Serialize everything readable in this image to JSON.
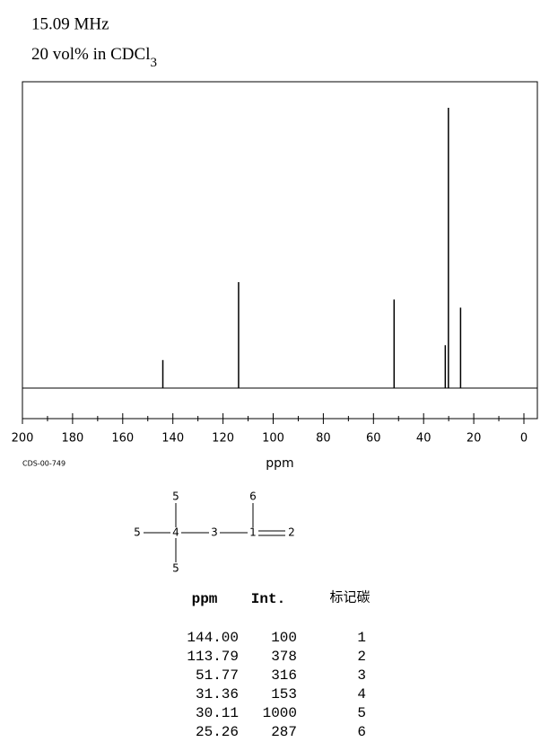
{
  "header": {
    "frequency": "15.09 MHz",
    "solvent": "20 vol% in CDCl",
    "solvent_subscript": "3"
  },
  "chart_data": {
    "type": "spectrum",
    "x_label": "ppm",
    "code": "CDS-00-749",
    "xlim": [
      200,
      0
    ],
    "xticks": [
      200,
      180,
      160,
      140,
      120,
      100,
      80,
      60,
      40,
      20,
      0
    ],
    "x": [
      144.0,
      113.79,
      51.77,
      31.36,
      30.11,
      25.26
    ],
    "values": [
      100,
      378,
      316,
      153,
      1000,
      287
    ],
    "color": "#000000"
  },
  "structure": {
    "nodes": [
      "5",
      "6",
      "5",
      "4",
      "3",
      "1",
      "2",
      "5"
    ]
  },
  "table": {
    "headers": [
      "ppm",
      "Int.",
      "标记碳"
    ],
    "rows": [
      [
        "144.00",
        "100",
        "1"
      ],
      [
        "113.79",
        "378",
        "2"
      ],
      [
        "51.77",
        "316",
        "3"
      ],
      [
        "31.36",
        "153",
        "4"
      ],
      [
        "30.11",
        "1000",
        "5"
      ],
      [
        "25.26",
        "287",
        "6"
      ]
    ]
  }
}
